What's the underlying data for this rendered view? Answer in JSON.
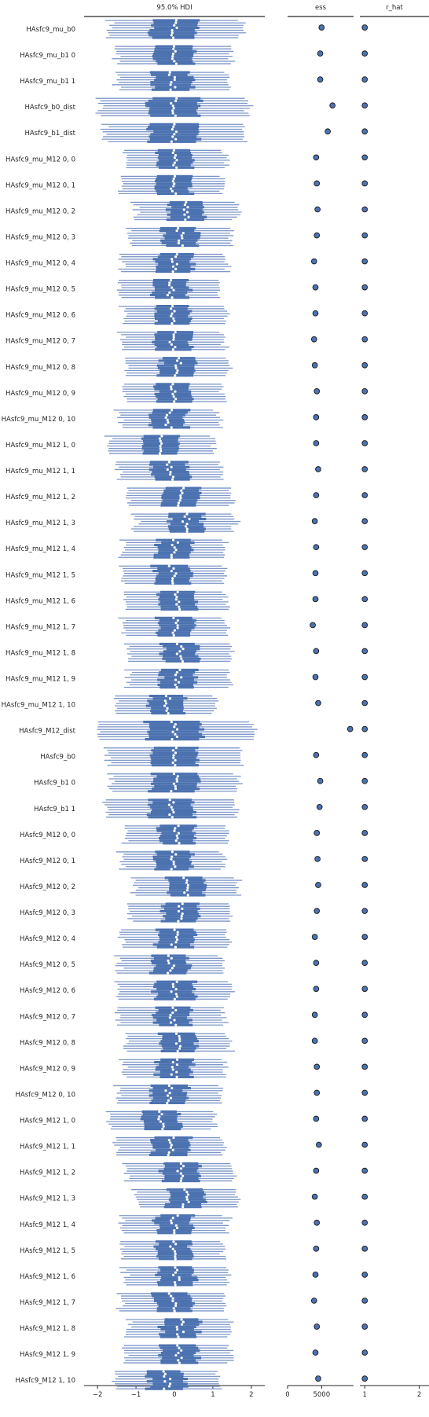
{
  "chart_data": {
    "type": "forest",
    "colors": {
      "chain": "#4c72b0",
      "chain_light": "#7b96c8",
      "median": "#ffffff",
      "axis": "#262626"
    },
    "chains": 8,
    "panels": [
      {
        "id": "hdi",
        "title": "95.0% HDI",
        "xlim": [
          -2.35,
          2.35
        ],
        "ticks": [
          -2,
          -1,
          0,
          1,
          2
        ],
        "tick_labels": [
          "−2",
          "−1",
          "0",
          "1",
          "2"
        ]
      },
      {
        "id": "ess",
        "title": "ess",
        "xlim": [
          0,
          9700
        ],
        "ticks": [
          0,
          5000
        ],
        "tick_labels": [
          "0",
          "5000"
        ]
      },
      {
        "id": "rhat",
        "title": "r_hat",
        "xlim": [
          0.91,
          2.18
        ],
        "ticks": [
          1,
          2
        ],
        "tick_labels": [
          "1",
          "2"
        ]
      }
    ],
    "parameters": [
      {
        "label": "HAsfc9_mu_b0",
        "center": 0.0,
        "hdi": [
          -1.75,
          1.75
        ],
        "ess": 5000,
        "r_hat": 1.0
      },
      {
        "label": "HAsfc9_mu_b1 0",
        "center": 0.0,
        "hdi": [
          -1.55,
          1.5
        ],
        "ess": 4800,
        "r_hat": 1.0
      },
      {
        "label": "HAsfc9_mu_b1 1",
        "center": -0.05,
        "hdi": [
          -1.55,
          1.45
        ],
        "ess": 4800,
        "r_hat": 1.0
      },
      {
        "label": "HAsfc9_b0_dist",
        "center": 0.0,
        "hdi": [
          -1.95,
          1.95
        ],
        "ess": 6600,
        "r_hat": 1.0
      },
      {
        "label": "HAsfc9_b1_dist",
        "center": 0.0,
        "hdi": [
          -1.85,
          1.85
        ],
        "ess": 5900,
        "r_hat": 1.0
      },
      {
        "label": "HAsfc9_mu_M12 0, 0",
        "center": 0.05,
        "hdi": [
          -1.3,
          1.35
        ],
        "ess": 4200,
        "r_hat": 1.0
      },
      {
        "label": "HAsfc9_mu_M12 0, 1",
        "center": -0.05,
        "hdi": [
          -1.4,
          1.3
        ],
        "ess": 4300,
        "r_hat": 1.0
      },
      {
        "label": "HAsfc9_mu_M12 0, 2",
        "center": 0.3,
        "hdi": [
          -1.05,
          1.65
        ],
        "ess": 4400,
        "r_hat": 1.0
      },
      {
        "label": "HAsfc9_mu_M12 0, 3",
        "center": 0.15,
        "hdi": [
          -1.2,
          1.5
        ],
        "ess": 4300,
        "r_hat": 1.0
      },
      {
        "label": "HAsfc9_mu_M12 0, 4",
        "center": 0.0,
        "hdi": [
          -1.4,
          1.4
        ],
        "ess": 3900,
        "r_hat": 1.0
      },
      {
        "label": "HAsfc9_mu_M12 0, 5",
        "center": -0.1,
        "hdi": [
          -1.45,
          1.25
        ],
        "ess": 4100,
        "r_hat": 1.0
      },
      {
        "label": "HAsfc9_mu_M12 0, 6",
        "center": 0.0,
        "hdi": [
          -1.35,
          1.35
        ],
        "ess": 4100,
        "r_hat": 1.0
      },
      {
        "label": "HAsfc9_mu_M12 0, 7",
        "center": -0.05,
        "hdi": [
          -1.45,
          1.3
        ],
        "ess": 3900,
        "r_hat": 1.0
      },
      {
        "label": "HAsfc9_mu_M12 0, 8",
        "center": 0.1,
        "hdi": [
          -1.2,
          1.5
        ],
        "ess": 4000,
        "r_hat": 1.0
      },
      {
        "label": "HAsfc9_mu_M12 0, 9",
        "center": 0.0,
        "hdi": [
          -1.25,
          1.35
        ],
        "ess": 4300,
        "r_hat": 1.0
      },
      {
        "label": "HAsfc9_mu_M12 0, 10",
        "center": -0.15,
        "hdi": [
          -1.5,
          1.15
        ],
        "ess": 4200,
        "r_hat": 1.0
      },
      {
        "label": "HAsfc9_mu_M12 1, 0",
        "center": -0.35,
        "hdi": [
          -1.75,
          1.05
        ],
        "ess": 4200,
        "r_hat": 1.0
      },
      {
        "label": "HAsfc9_mu_M12 1, 1",
        "center": -0.1,
        "hdi": [
          -1.5,
          1.25
        ],
        "ess": 4500,
        "r_hat": 1.0
      },
      {
        "label": "HAsfc9_mu_M12 1, 2",
        "center": 0.15,
        "hdi": [
          -1.25,
          1.5
        ],
        "ess": 4200,
        "r_hat": 1.0
      },
      {
        "label": "HAsfc9_mu_M12 1, 3",
        "center": 0.3,
        "hdi": [
          -1.0,
          1.65
        ],
        "ess": 4000,
        "r_hat": 1.0
      },
      {
        "label": "HAsfc9_mu_M12 1, 4",
        "center": 0.0,
        "hdi": [
          -1.35,
          1.35
        ],
        "ess": 4200,
        "r_hat": 1.0
      },
      {
        "label": "HAsfc9_mu_M12 1, 5",
        "center": -0.05,
        "hdi": [
          -1.4,
          1.3
        ],
        "ess": 4100,
        "r_hat": 1.0
      },
      {
        "label": "HAsfc9_mu_M12 1, 6",
        "center": 0.05,
        "hdi": [
          -1.3,
          1.4
        ],
        "ess": 4100,
        "r_hat": 1.0
      },
      {
        "label": "HAsfc9_mu_M12 1, 7",
        "center": 0.0,
        "hdi": [
          -1.35,
          1.35
        ],
        "ess": 3700,
        "r_hat": 1.0
      },
      {
        "label": "HAsfc9_mu_M12 1, 8",
        "center": 0.15,
        "hdi": [
          -1.2,
          1.55
        ],
        "ess": 4200,
        "r_hat": 1.0
      },
      {
        "label": "HAsfc9_mu_M12 1, 9",
        "center": 0.1,
        "hdi": [
          -1.25,
          1.45
        ],
        "ess": 4100,
        "r_hat": 1.0
      },
      {
        "label": "HAsfc9_mu_M12 1, 10",
        "center": -0.2,
        "hdi": [
          -1.55,
          1.1
        ],
        "ess": 4500,
        "r_hat": 1.0
      },
      {
        "label": "HAsfc9_M12_dist",
        "center": 0.0,
        "hdi": [
          -2.05,
          2.05
        ],
        "ess": 9200,
        "r_hat": 1.0
      },
      {
        "label": "HAsfc9_b0",
        "center": 0.0,
        "hdi": [
          -1.75,
          1.75
        ],
        "ess": 4200,
        "r_hat": 1.0
      },
      {
        "label": "HAsfc9_b1 0",
        "center": 0.0,
        "hdi": [
          -1.7,
          1.7
        ],
        "ess": 4800,
        "r_hat": 1.0
      },
      {
        "label": "HAsfc9_b1 1",
        "center": -0.05,
        "hdi": [
          -1.75,
          1.7
        ],
        "ess": 4700,
        "r_hat": 1.0
      },
      {
        "label": "HAsfc9_M12 0, 0",
        "center": 0.05,
        "hdi": [
          -1.35,
          1.35
        ],
        "ess": 4300,
        "r_hat": 1.0
      },
      {
        "label": "HAsfc9_M12 0, 1",
        "center": -0.05,
        "hdi": [
          -1.45,
          1.3
        ],
        "ess": 4400,
        "r_hat": 1.0
      },
      {
        "label": "HAsfc9_M12 0, 2",
        "center": 0.3,
        "hdi": [
          -1.05,
          1.7
        ],
        "ess": 4500,
        "r_hat": 1.0
      },
      {
        "label": "HAsfc9_M12 0, 3",
        "center": 0.15,
        "hdi": [
          -1.25,
          1.45
        ],
        "ess": 4300,
        "r_hat": 1.0
      },
      {
        "label": "HAsfc9_M12 0, 4",
        "center": 0.0,
        "hdi": [
          -1.4,
          1.4
        ],
        "ess": 4000,
        "r_hat": 1.0
      },
      {
        "label": "HAsfc9_M12 0, 5",
        "center": -0.1,
        "hdi": [
          -1.5,
          1.25
        ],
        "ess": 4200,
        "r_hat": 1.0
      },
      {
        "label": "HAsfc9_M12 0, 6",
        "center": 0.0,
        "hdi": [
          -1.4,
          1.6
        ],
        "ess": 4200,
        "r_hat": 1.0
      },
      {
        "label": "HAsfc9_M12 0, 7",
        "center": -0.05,
        "hdi": [
          -1.45,
          1.35
        ],
        "ess": 4000,
        "r_hat": 1.0
      },
      {
        "label": "HAsfc9_M12 0, 8",
        "center": 0.1,
        "hdi": [
          -1.25,
          1.5
        ],
        "ess": 4000,
        "r_hat": 1.0
      },
      {
        "label": "HAsfc9_M12 0, 9",
        "center": 0.0,
        "hdi": [
          -1.3,
          1.4
        ],
        "ess": 4300,
        "r_hat": 1.0
      },
      {
        "label": "HAsfc9_M12 0, 10",
        "center": -0.15,
        "hdi": [
          -1.55,
          1.2
        ],
        "ess": 4300,
        "r_hat": 1.0
      },
      {
        "label": "HAsfc9_M12 1, 0",
        "center": -0.35,
        "hdi": [
          -1.75,
          1.05
        ],
        "ess": 4200,
        "r_hat": 1.0
      },
      {
        "label": "HAsfc9_M12 1, 1",
        "center": -0.1,
        "hdi": [
          -1.55,
          1.3
        ],
        "ess": 4600,
        "r_hat": 1.0
      },
      {
        "label": "HAsfc9_M12 1, 2",
        "center": 0.15,
        "hdi": [
          -1.25,
          1.55
        ],
        "ess": 4200,
        "r_hat": 1.0
      },
      {
        "label": "HAsfc9_M12 1, 3",
        "center": 0.3,
        "hdi": [
          -1.0,
          1.7
        ],
        "ess": 4000,
        "r_hat": 1.0
      },
      {
        "label": "HAsfc9_M12 1, 4",
        "center": 0.0,
        "hdi": [
          -1.4,
          1.4
        ],
        "ess": 4300,
        "r_hat": 1.0
      },
      {
        "label": "HAsfc9_M12 1, 5",
        "center": -0.05,
        "hdi": [
          -1.4,
          1.3
        ],
        "ess": 4200,
        "r_hat": 1.0
      },
      {
        "label": "HAsfc9_M12 1, 6",
        "center": 0.05,
        "hdi": [
          -1.35,
          1.4
        ],
        "ess": 4100,
        "r_hat": 1.0
      },
      {
        "label": "HAsfc9_M12 1, 7",
        "center": -0.05,
        "hdi": [
          -1.4,
          1.35
        ],
        "ess": 3900,
        "r_hat": 1.0
      },
      {
        "label": "HAsfc9_M12 1, 8",
        "center": 0.15,
        "hdi": [
          -1.25,
          1.5
        ],
        "ess": 4300,
        "r_hat": 1.0
      },
      {
        "label": "HAsfc9_M12 1, 9",
        "center": 0.1,
        "hdi": [
          -1.3,
          1.5
        ],
        "ess": 4100,
        "r_hat": 1.0
      },
      {
        "label": "HAsfc9_M12 1, 10",
        "center": -0.2,
        "hdi": [
          -1.6,
          1.15
        ],
        "ess": 4500,
        "r_hat": 1.0
      }
    ]
  }
}
